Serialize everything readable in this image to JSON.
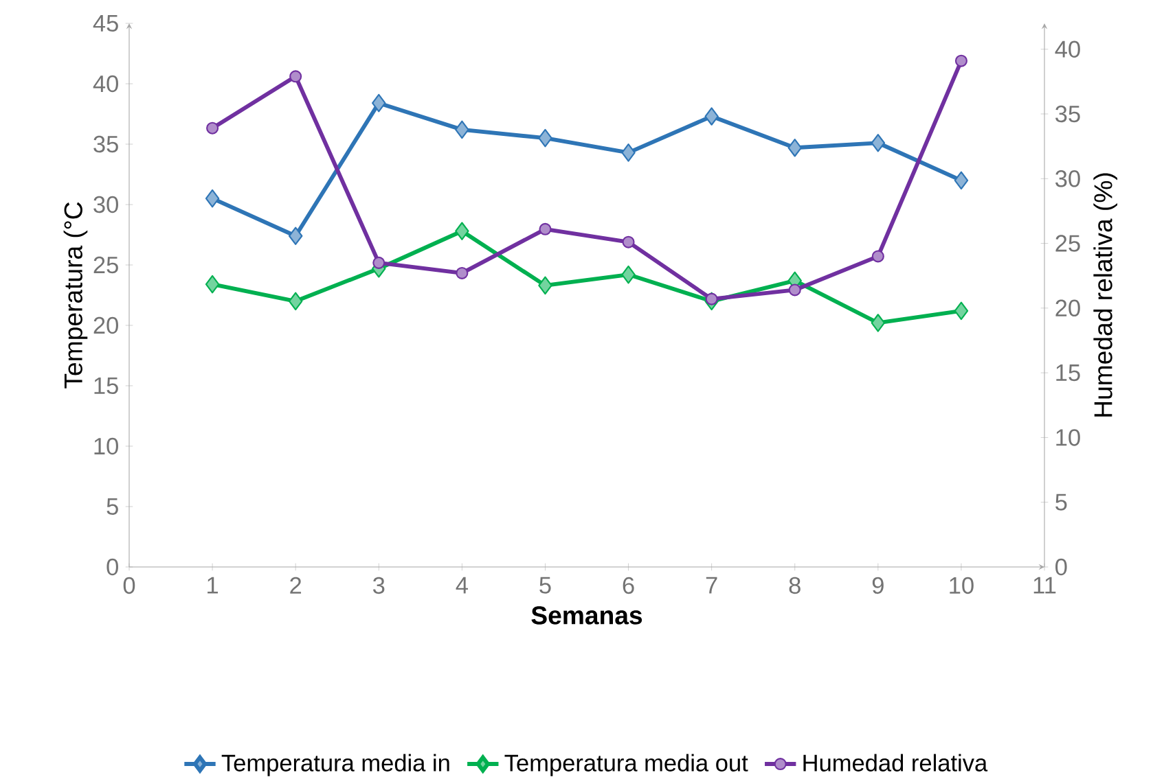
{
  "chart_data": {
    "type": "line",
    "xlabel": "Semanas",
    "ylabel": "Temperatura (°C",
    "y2label": "Humedad relativa (%)",
    "x": [
      1,
      2,
      3,
      4,
      5,
      6,
      7,
      8,
      9,
      10
    ],
    "series": [
      {
        "name": "Temperatura media in",
        "color": "#2e75b6",
        "marker": "diamond",
        "values": [
          30.5,
          27.4,
          38.4,
          36.2,
          35.5,
          34.3,
          37.3,
          34.7,
          35.1,
          32.0
        ]
      },
      {
        "name": "Temperatura media out",
        "color": "#00b050",
        "marker": "diamond",
        "values": [
          23.4,
          22.0,
          24.7,
          27.8,
          23.3,
          24.2,
          22.0,
          23.7,
          20.2,
          21.2
        ]
      },
      {
        "name": "Humedad relativa",
        "color": "#7030a0",
        "marker": "circle",
        "axis": "y2",
        "values": [
          33.9,
          37.9,
          23.5,
          22.7,
          26.1,
          25.1,
          20.7,
          21.4,
          24.0,
          39.1
        ]
      }
    ],
    "xlim": [
      0,
      11
    ],
    "xticks": [
      0,
      1,
      2,
      3,
      4,
      5,
      6,
      7,
      8,
      9,
      10,
      11
    ],
    "ylim": [
      0,
      45
    ],
    "yticks": [
      0,
      5,
      10,
      15,
      20,
      25,
      30,
      35,
      40,
      45
    ],
    "y2lim": [
      0,
      42
    ],
    "y2ticks": [
      0,
      5,
      10,
      15,
      20,
      25,
      30,
      35,
      40
    ],
    "grid": false,
    "legend": "bottom",
    "line_style": "solid"
  }
}
